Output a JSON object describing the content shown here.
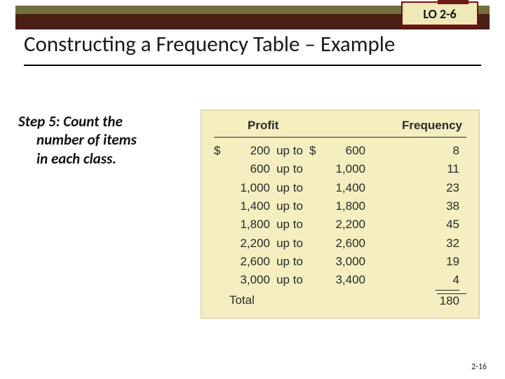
{
  "lo_badge": "LO 2-6",
  "title": "Constructing a Frequency Table – Example",
  "step": {
    "lead": "Step 5: Count the",
    "line2": "number of items",
    "line3": "in each class."
  },
  "table": {
    "header_left": "Profit",
    "header_right": "Frequency",
    "currency": "$",
    "upto": "up to",
    "rows": [
      {
        "lo": "200",
        "hi": "600",
        "freq": "8",
        "show_cur": true
      },
      {
        "lo": "600",
        "hi": "1,000",
        "freq": "11",
        "show_cur": false
      },
      {
        "lo": "1,000",
        "hi": "1,400",
        "freq": "23",
        "show_cur": false
      },
      {
        "lo": "1,400",
        "hi": "1,800",
        "freq": "38",
        "show_cur": false
      },
      {
        "lo": "1,800",
        "hi": "2,200",
        "freq": "45",
        "show_cur": false
      },
      {
        "lo": "2,200",
        "hi": "2,600",
        "freq": "32",
        "show_cur": false
      },
      {
        "lo": "2,600",
        "hi": "3,000",
        "freq": "19",
        "show_cur": false
      },
      {
        "lo": "3,000",
        "hi": "3,400",
        "freq": "4",
        "show_cur": false
      }
    ],
    "total_label": "Total",
    "total_value": "180"
  },
  "slide_number": "2-16",
  "colors": {
    "olive": "#707040",
    "brown": "#4a1e17",
    "badge_bg": "#efe9b8",
    "badge_border": "#7b0f0f",
    "table_bg": "#f4eec0"
  }
}
